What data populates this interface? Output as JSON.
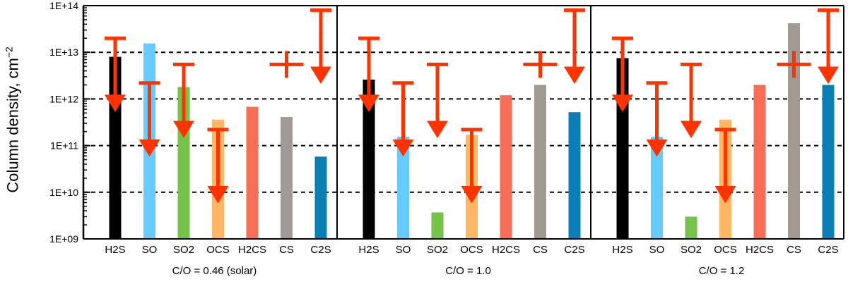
{
  "chart_data": {
    "type": "bar",
    "ylabel": "Column density, cm",
    "ylabel_sup": "−2",
    "yscale": "log",
    "ylim": [
      1000000000.0,
      100000000000000.0
    ],
    "yticks": [
      {
        "v": 1000000000.0,
        "label": "1E+09"
      },
      {
        "v": 10000000000.0,
        "label": "1E+10"
      },
      {
        "v": 100000000000.0,
        "label": "1E+11"
      },
      {
        "v": 1000000000000.0,
        "label": "1E+12"
      },
      {
        "v": 10000000000000.0,
        "label": "1E+13"
      },
      {
        "v": 100000000000000.0,
        "label": "1E+14"
      }
    ],
    "grid": "dashed horizontal at 1E+10 … 1E+13",
    "categories": [
      "H2S",
      "SO",
      "SO2",
      "OCS",
      "H2CS",
      "CS",
      "C2S"
    ],
    "colors": [
      "#000000",
      "#66ccff",
      "#77c24a",
      "#ffb766",
      "#f66f55",
      "#a09a92",
      "#0a7fb6"
    ],
    "arrow_color": "#ff3300",
    "panels": [
      {
        "xlabel": "C/O = 0.46 (solar)",
        "values": [
          8000000000000.0,
          15500000000000.0,
          1800000000000.0,
          360000000000.0,
          680000000000.0,
          410000000000.0,
          58000000000.0
        ],
        "limits": [
          {
            "index": 0,
            "kind": "upper",
            "value": 20000000000000.0
          },
          {
            "index": 1,
            "kind": "upper",
            "value": 2200000000000.0
          },
          {
            "index": 2,
            "kind": "upper",
            "value": 5500000000000.0
          },
          {
            "index": 3,
            "kind": "upper",
            "value": 220000000000.0
          },
          {
            "index": 5,
            "kind": "detection",
            "value": 5500000000000.0
          },
          {
            "index": 6,
            "kind": "upper",
            "value": 80000000000000.0
          }
        ]
      },
      {
        "xlabel": "C/O = 1.0",
        "values": [
          2600000000000.0,
          155000000000.0,
          3700000000.0,
          170000000000.0,
          1200000000000.0,
          2000000000000.0,
          520000000000.0
        ],
        "limits": [
          {
            "index": 0,
            "kind": "upper",
            "value": 20000000000000.0
          },
          {
            "index": 1,
            "kind": "upper",
            "value": 2200000000000.0
          },
          {
            "index": 2,
            "kind": "upper",
            "value": 5500000000000.0
          },
          {
            "index": 3,
            "kind": "upper",
            "value": 220000000000.0
          },
          {
            "index": 5,
            "kind": "detection",
            "value": 5500000000000.0
          },
          {
            "index": 6,
            "kind": "upper",
            "value": 80000000000000.0
          }
        ]
      },
      {
        "xlabel": "C/O = 1.2",
        "values": [
          7500000000000.0,
          155000000000.0,
          3000000000.0,
          360000000000.0,
          2000000000000.0,
          42000000000000.0,
          2000000000000.0
        ],
        "limits": [
          {
            "index": 0,
            "kind": "upper",
            "value": 20000000000000.0
          },
          {
            "index": 1,
            "kind": "upper",
            "value": 2200000000000.0
          },
          {
            "index": 2,
            "kind": "upper",
            "value": 5500000000000.0
          },
          {
            "index": 3,
            "kind": "upper",
            "value": 220000000000.0
          },
          {
            "index": 5,
            "kind": "detection",
            "value": 5500000000000.0
          },
          {
            "index": 6,
            "kind": "upper",
            "value": 80000000000000.0
          }
        ]
      }
    ]
  }
}
